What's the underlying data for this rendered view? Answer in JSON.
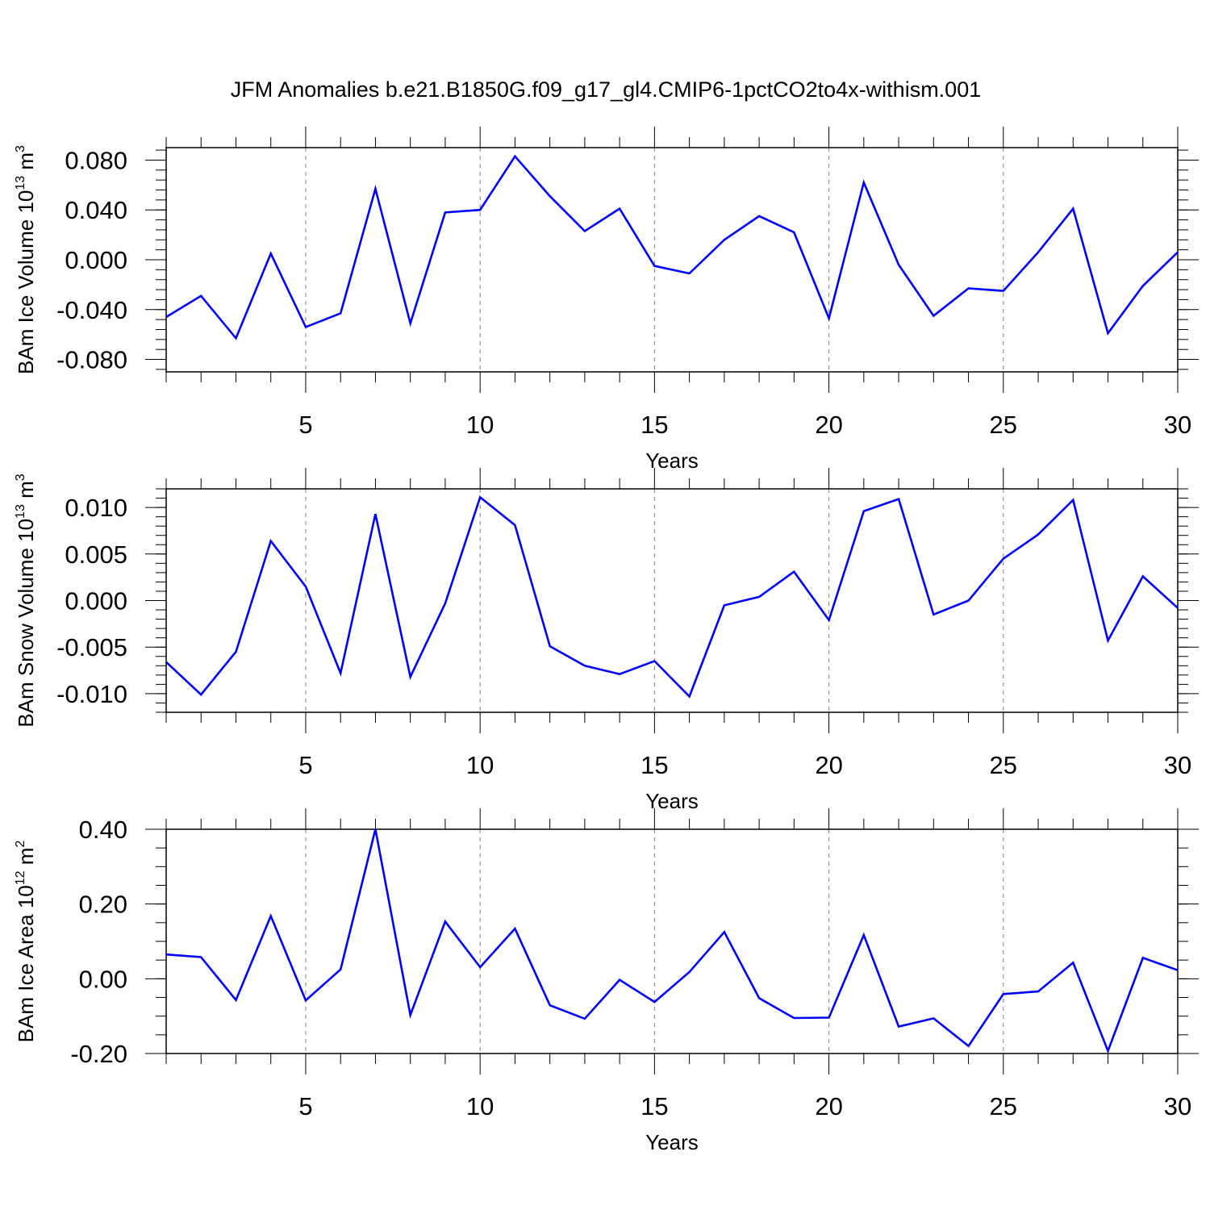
{
  "title": "JFM Anomalies b.e21.B1850G.f09_g17_gl4.CMIP6-1pctCO2to4x-withism.001",
  "colors": {
    "line": "#0000ff",
    "frame": "#000000",
    "grid": "#808080"
  },
  "chart_data": [
    {
      "type": "line",
      "xlabel": "Years",
      "ylabel": {
        "text": "BAm Ice Volume 10",
        "exp": "13",
        "unit": " m",
        "unit_exp": "3"
      },
      "xlim": [
        1,
        30
      ],
      "ylim": [
        -0.09,
        0.09
      ],
      "xticks": [
        5,
        10,
        15,
        20,
        25,
        30
      ],
      "yticks": [
        -0.08,
        -0.04,
        0.0,
        0.04,
        0.08
      ],
      "ytick_labels": [
        "-0.080",
        "-0.040",
        "0.000",
        "0.040",
        "0.080"
      ],
      "yminor_step": 0.008,
      "x": [
        1,
        2,
        3,
        4,
        5,
        6,
        7,
        8,
        9,
        10,
        11,
        12,
        13,
        14,
        15,
        16,
        17,
        18,
        19,
        20,
        21,
        22,
        23,
        24,
        25,
        26,
        27,
        28,
        29,
        30
      ],
      "series": [
        {
          "name": "BAm Ice Volume",
          "values": [
            -0.046,
            -0.029,
            -0.063,
            0.005,
            -0.054,
            -0.043,
            0.057,
            -0.051,
            0.038,
            0.04,
            0.083,
            0.051,
            0.023,
            0.041,
            -0.005,
            -0.011,
            0.016,
            0.035,
            0.022,
            -0.047,
            0.062,
            -0.004,
            -0.045,
            -0.023,
            -0.025,
            0.006,
            0.041,
            -0.059,
            -0.021,
            0.006
          ]
        }
      ]
    },
    {
      "type": "line",
      "xlabel": "Years",
      "ylabel": {
        "text": "BAm Snow Volume 10",
        "exp": "13",
        "unit": " m",
        "unit_exp": "3"
      },
      "xlim": [
        1,
        30
      ],
      "ylim": [
        -0.012,
        0.012
      ],
      "xticks": [
        5,
        10,
        15,
        20,
        25,
        30
      ],
      "yticks": [
        -0.01,
        -0.005,
        0.0,
        0.005,
        0.01
      ],
      "ytick_labels": [
        "-0.010",
        "-0.005",
        "0.000",
        "0.005",
        "0.010"
      ],
      "yminor_step": 0.001,
      "x": [
        1,
        2,
        3,
        4,
        5,
        6,
        7,
        8,
        9,
        10,
        11,
        12,
        13,
        14,
        15,
        16,
        17,
        18,
        19,
        20,
        21,
        22,
        23,
        24,
        25,
        26,
        27,
        28,
        29,
        30
      ],
      "series": [
        {
          "name": "BAm Snow Volume",
          "values": [
            -0.0066,
            -0.0101,
            -0.0055,
            0.0064,
            0.0015,
            -0.0078,
            0.0093,
            -0.0082,
            -0.0003,
            0.0111,
            0.0081,
            -0.0049,
            -0.007,
            -0.0079,
            -0.0065,
            -0.0103,
            -0.0005,
            0.0004,
            0.0031,
            -0.0021,
            0.0096,
            0.0109,
            -0.0015,
            0.0,
            0.0045,
            0.0071,
            0.0108,
            -0.0043,
            0.0026,
            -0.0008
          ]
        }
      ]
    },
    {
      "type": "line",
      "xlabel": "Years",
      "ylabel": {
        "text": "BAm Ice Area 10",
        "exp": "12",
        "unit": " m",
        "unit_exp": "2"
      },
      "xlim": [
        1,
        30
      ],
      "ylim": [
        -0.2,
        0.4
      ],
      "xticks": [
        5,
        10,
        15,
        20,
        25,
        30
      ],
      "yticks": [
        -0.2,
        0.0,
        0.2,
        0.4
      ],
      "ytick_labels": [
        "-0.20",
        "0.00",
        "0.20",
        "0.40"
      ],
      "yminor_step": 0.05,
      "x": [
        1,
        2,
        3,
        4,
        5,
        6,
        7,
        8,
        9,
        10,
        11,
        12,
        13,
        14,
        15,
        16,
        17,
        18,
        19,
        20,
        21,
        22,
        23,
        24,
        25,
        26,
        27,
        28,
        29,
        30
      ],
      "series": [
        {
          "name": "BAm Ice Area",
          "values": [
            0.065,
            0.058,
            -0.057,
            0.168,
            -0.058,
            0.025,
            0.4,
            -0.097,
            0.153,
            0.031,
            0.134,
            -0.071,
            -0.107,
            -0.003,
            -0.062,
            0.018,
            0.125,
            -0.052,
            -0.105,
            -0.104,
            0.117,
            -0.128,
            -0.106,
            -0.18,
            -0.041,
            -0.034,
            0.043,
            -0.193,
            0.056,
            0.023
          ]
        }
      ]
    }
  ]
}
